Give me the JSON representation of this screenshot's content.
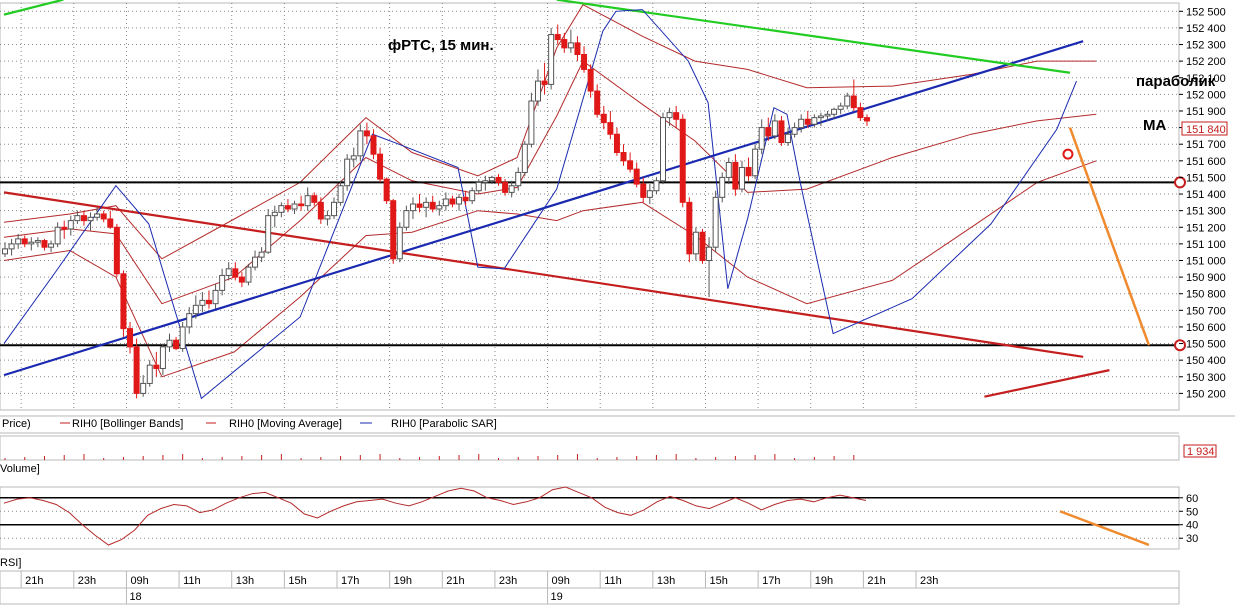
{
  "chart_data": {
    "type": "candlestick",
    "instrument": "RIH0",
    "annotations": {
      "title": "фРТС,  15 мин.",
      "parabolic": "параболик",
      "ma": "MA"
    },
    "price_axis": {
      "ticks": [
        "152 500",
        "152 400",
        "152 300",
        "152 200",
        "152 100",
        "152 000",
        "151 900",
        "151 800",
        "151 700",
        "151 600",
        "151 500",
        "151 400",
        "151 300",
        "151 200",
        "151 100",
        "151 000",
        "150 900",
        "150 800",
        "150 700",
        "150 600",
        "150 500",
        "150 400",
        "150 300",
        "150 200"
      ],
      "ylim": [
        150100,
        152550
      ],
      "current_price": "151 840",
      "grid": true
    },
    "volume_axis": {
      "current_value": "1 934"
    },
    "rsi_axis": {
      "ticks": [
        "60",
        "50",
        "40",
        "30"
      ],
      "ylim": [
        22,
        68
      ],
      "levels": [
        60,
        40
      ]
    },
    "time_axis": {
      "ticks": [
        "21h",
        "23h",
        "09h",
        "11h",
        "13h",
        "15h",
        "17h",
        "19h",
        "21h",
        "23h",
        "09h",
        "11h",
        "13h",
        "15h",
        "17h",
        "19h",
        "21h",
        "23h"
      ],
      "dates": [
        {
          "label": "18",
          "after_index": 2
        },
        {
          "label": "19",
          "after_index": 10
        }
      ]
    },
    "panel_labels": {
      "price": "Price)",
      "volume": "Volume]",
      "rsi": "RSI]"
    },
    "legend": [
      "RIH0 [Bollinger Bands]",
      "RIH0 [Moving Average]",
      "RIH0 [Parabolic SAR]"
    ],
    "horizontal_levels": [
      151470,
      150490
    ],
    "trendlines": {
      "blue_support": {
        "from_bar": 0,
        "from_price": 150310,
        "to_bar": 164,
        "to_price": 152320,
        "color": "#1a2ab0"
      },
      "red_falling": {
        "from_bar": 0,
        "from_price": 151410,
        "to_bar": 164,
        "to_price": 150420,
        "color": "#c41e1e"
      },
      "green_resistance": {
        "from_bar": 84,
        "from_price": 152570,
        "to_bar": 162,
        "to_price": 152130,
        "color": "#22cc22"
      },
      "green_left": {
        "from_bar": 0,
        "from_price": 152480,
        "to_bar": 9,
        "to_price": 152570,
        "color": "#22cc22"
      },
      "red_lower": {
        "from_bar": 149,
        "from_price": 150180,
        "to_bar": 168,
        "to_price": 150340,
        "color": "#c41e1e"
      }
    },
    "forecast": {
      "from_bar": 162,
      "from_price": 151800,
      "to_bar": 174,
      "to_price": 150490,
      "color": "#f08a2e"
    },
    "candles": [
      [
        151040,
        151110,
        151020,
        151070
      ],
      [
        151070,
        151130,
        151030,
        151100
      ],
      [
        151100,
        151160,
        151070,
        151130
      ],
      [
        151130,
        151150,
        151080,
        151100
      ],
      [
        151100,
        151140,
        151060,
        151110
      ],
      [
        151110,
        151140,
        151080,
        151120
      ],
      [
        151120,
        151130,
        151060,
        151080
      ],
      [
        151080,
        151120,
        151050,
        151100
      ],
      [
        151100,
        151230,
        151080,
        151200
      ],
      [
        151200,
        151240,
        151130,
        151190
      ],
      [
        151190,
        151270,
        151150,
        151240
      ],
      [
        151240,
        151300,
        151220,
        151270
      ],
      [
        151270,
        151300,
        151210,
        151240
      ],
      [
        151240,
        151290,
        151180,
        151260
      ],
      [
        151260,
        151320,
        151240,
        151280
      ],
      [
        151280,
        151300,
        151230,
        151250
      ],
      [
        151250,
        151300,
        151190,
        151200
      ],
      [
        151200,
        151220,
        150900,
        150920
      ],
      [
        150920,
        150940,
        150540,
        150590
      ],
      [
        150590,
        150630,
        150440,
        150480
      ],
      [
        150480,
        150530,
        150170,
        150200
      ],
      [
        150200,
        150310,
        150180,
        150260
      ],
      [
        150260,
        150400,
        150240,
        150370
      ],
      [
        150370,
        150450,
        150300,
        150350
      ],
      [
        150350,
        150500,
        150310,
        150480
      ],
      [
        150480,
        150560,
        150450,
        150520
      ],
      [
        150520,
        150540,
        150460,
        150470
      ],
      [
        150470,
        150630,
        150450,
        150600
      ],
      [
        150600,
        150720,
        150560,
        150680
      ],
      [
        150680,
        150790,
        150650,
        150730
      ],
      [
        150730,
        150810,
        150690,
        150760
      ],
      [
        150760,
        150820,
        150710,
        150740
      ],
      [
        150740,
        150860,
        150710,
        150820
      ],
      [
        150820,
        150950,
        150790,
        150910
      ],
      [
        150910,
        150990,
        150880,
        150950
      ],
      [
        150950,
        150990,
        150880,
        150900
      ],
      [
        150900,
        150930,
        150840,
        150870
      ],
      [
        150870,
        150980,
        150850,
        150960
      ],
      [
        150960,
        151060,
        150940,
        151020
      ],
      [
        151020,
        151080,
        150990,
        151050
      ],
      [
        151050,
        151310,
        151040,
        151270
      ],
      [
        151270,
        151330,
        151200,
        151290
      ],
      [
        151290,
        151350,
        151260,
        151330
      ],
      [
        151330,
        151370,
        151290,
        151310
      ],
      [
        151310,
        151360,
        151280,
        151340
      ],
      [
        151340,
        151390,
        151300,
        151330
      ],
      [
        151330,
        151440,
        151300,
        151390
      ],
      [
        151390,
        151410,
        151330,
        151350
      ],
      [
        151350,
        151380,
        151220,
        151250
      ],
      [
        151250,
        151300,
        151210,
        151270
      ],
      [
        151270,
        151380,
        151250,
        151350
      ],
      [
        151350,
        151480,
        151330,
        151450
      ],
      [
        151450,
        151640,
        151420,
        151610
      ],
      [
        151610,
        151680,
        151560,
        151630
      ],
      [
        151630,
        151820,
        151600,
        151780
      ],
      [
        151780,
        151830,
        151700,
        151750
      ],
      [
        151750,
        151790,
        151610,
        151640
      ],
      [
        151640,
        151680,
        151470,
        151490
      ],
      [
        151490,
        151500,
        151340,
        151360
      ],
      [
        151360,
        151370,
        150980,
        151010
      ],
      [
        151010,
        151230,
        150990,
        151200
      ],
      [
        151200,
        151330,
        151180,
        151300
      ],
      [
        151300,
        151380,
        151250,
        151340
      ],
      [
        151340,
        151400,
        151290,
        151320
      ],
      [
        151320,
        151380,
        151260,
        151350
      ],
      [
        151350,
        151390,
        151290,
        151310
      ],
      [
        151310,
        151360,
        151270,
        151330
      ],
      [
        151330,
        151410,
        151300,
        151370
      ],
      [
        151370,
        151390,
        151320,
        151340
      ],
      [
        151340,
        151400,
        151300,
        151380
      ],
      [
        151380,
        151420,
        151330,
        151360
      ],
      [
        151360,
        151440,
        151340,
        151420
      ],
      [
        151420,
        151490,
        151400,
        151470
      ],
      [
        151470,
        151510,
        151420,
        151480
      ],
      [
        151480,
        151510,
        151460,
        151500
      ],
      [
        151500,
        151520,
        151450,
        151470
      ],
      [
        151470,
        151490,
        151390,
        151410
      ],
      [
        151410,
        151480,
        151380,
        151450
      ],
      [
        151450,
        151560,
        151420,
        151530
      ],
      [
        151530,
        151720,
        151510,
        151700
      ],
      [
        151700,
        152010,
        151680,
        151960
      ],
      [
        151960,
        152150,
        151930,
        152080
      ],
      [
        152080,
        152190,
        152000,
        152060
      ],
      [
        152060,
        152400,
        152030,
        152360
      ],
      [
        152360,
        152420,
        152300,
        152330
      ],
      [
        152330,
        152370,
        152250,
        152280
      ],
      [
        152280,
        152390,
        152250,
        152310
      ],
      [
        152310,
        152350,
        152200,
        152240
      ],
      [
        152240,
        152290,
        152130,
        152150
      ],
      [
        152150,
        152180,
        151980,
        152020
      ],
      [
        152020,
        152060,
        151860,
        151880
      ],
      [
        151880,
        151930,
        151790,
        151830
      ],
      [
        151830,
        151900,
        151730,
        151760
      ],
      [
        151760,
        151800,
        151630,
        151650
      ],
      [
        151650,
        151700,
        151570,
        151600
      ],
      [
        151600,
        151650,
        151530,
        151550
      ],
      [
        151550,
        151590,
        151440,
        151460
      ],
      [
        151460,
        151500,
        151350,
        151380
      ],
      [
        151380,
        151460,
        151340,
        151420
      ],
      [
        151420,
        151500,
        151400,
        151480
      ],
      [
        151480,
        151890,
        151460,
        151860
      ],
      [
        151860,
        151920,
        151810,
        151890
      ],
      [
        151890,
        151930,
        151800,
        151850
      ],
      [
        151850,
        151880,
        151320,
        151350
      ],
      [
        151350,
        151380,
        150990,
        151040
      ],
      [
        151040,
        151200,
        151000,
        151170
      ],
      [
        151170,
        151190,
        150980,
        151000
      ],
      [
        151000,
        151140,
        150780,
        151080
      ],
      [
        151080,
        151420,
        151050,
        151380
      ],
      [
        151380,
        151530,
        151350,
        151500
      ],
      [
        151500,
        151620,
        151460,
        151590
      ],
      [
        151590,
        151640,
        151390,
        151430
      ],
      [
        151430,
        151600,
        151410,
        151560
      ],
      [
        151560,
        151620,
        151480,
        151510
      ],
      [
        151510,
        151700,
        151490,
        151670
      ],
      [
        151670,
        151850,
        151640,
        151800
      ],
      [
        151800,
        151860,
        151720,
        151750
      ],
      [
        151750,
        151880,
        151730,
        151840
      ],
      [
        151840,
        151870,
        151690,
        151710
      ],
      [
        151710,
        151800,
        151690,
        151760
      ],
      [
        151760,
        151830,
        151740,
        151800
      ],
      [
        151800,
        151880,
        151770,
        151850
      ],
      [
        151850,
        151900,
        151800,
        151820
      ],
      [
        151820,
        151880,
        151800,
        151860
      ],
      [
        151860,
        151890,
        151810,
        151870
      ],
      [
        151870,
        151900,
        151840,
        151880
      ],
      [
        151880,
        151920,
        151850,
        151910
      ],
      [
        151910,
        151950,
        151880,
        151930
      ],
      [
        151930,
        152010,
        151910,
        151990
      ],
      [
        151990,
        152090,
        151900,
        151920
      ],
      [
        151920,
        151950,
        151840,
        151860
      ],
      [
        151860,
        151880,
        151810,
        151840
      ]
    ],
    "bollinger_bands": {
      "upper": [
        [
          0,
          151230
        ],
        [
          10,
          151280
        ],
        [
          17,
          151330
        ],
        [
          24,
          151010
        ],
        [
          35,
          151250
        ],
        [
          45,
          151470
        ],
        [
          55,
          151860
        ],
        [
          62,
          151650
        ],
        [
          72,
          151510
        ],
        [
          78,
          151620
        ],
        [
          84,
          152280
        ],
        [
          88,
          152540
        ],
        [
          97,
          152350
        ],
        [
          105,
          152200
        ],
        [
          113,
          152150
        ],
        [
          122,
          152040
        ],
        [
          135,
          152050
        ],
        [
          147,
          152120
        ],
        [
          157,
          152200
        ],
        [
          166,
          152200
        ]
      ],
      "middle": [
        [
          0,
          151140
        ],
        [
          10,
          151190
        ],
        [
          17,
          151160
        ],
        [
          24,
          150740
        ],
        [
          35,
          150900
        ],
        [
          45,
          151240
        ],
        [
          55,
          151620
        ],
        [
          62,
          151480
        ],
        [
          72,
          151400
        ],
        [
          78,
          151440
        ],
        [
          84,
          151870
        ],
        [
          88,
          152200
        ],
        [
          97,
          151940
        ],
        [
          105,
          151720
        ],
        [
          113,
          151410
        ],
        [
          122,
          151430
        ],
        [
          135,
          151620
        ],
        [
          147,
          151760
        ],
        [
          157,
          151840
        ],
        [
          166,
          151880
        ]
      ],
      "lower": [
        [
          0,
          151000
        ],
        [
          10,
          151060
        ],
        [
          17,
          150900
        ],
        [
          24,
          150300
        ],
        [
          35,
          150450
        ],
        [
          45,
          150780
        ],
        [
          55,
          151150
        ],
        [
          62,
          151170
        ],
        [
          72,
          151300
        ],
        [
          78,
          151280
        ],
        [
          84,
          151240
        ],
        [
          88,
          151300
        ],
        [
          97,
          151350
        ],
        [
          105,
          151150
        ],
        [
          113,
          150900
        ],
        [
          122,
          150740
        ],
        [
          135,
          150880
        ],
        [
          147,
          151200
        ],
        [
          157,
          151470
        ],
        [
          166,
          151600
        ]
      ]
    },
    "parabolic_sar": [
      [
        0,
        150500
      ],
      [
        8,
        150940
      ],
      [
        17,
        151450
      ],
      [
        22,
        151220
      ],
      [
        30,
        150170
      ],
      [
        45,
        150660
      ],
      [
        56,
        151760
      ],
      [
        60,
        151700
      ],
      [
        69,
        151560
      ],
      [
        72,
        150960
      ],
      [
        76,
        150950
      ],
      [
        84,
        151430
      ],
      [
        91,
        152380
      ],
      [
        93,
        152500
      ],
      [
        97,
        152510
      ],
      [
        104,
        152200
      ],
      [
        107,
        151950
      ],
      [
        110,
        150830
      ],
      [
        113,
        151250
      ],
      [
        117,
        151920
      ],
      [
        119,
        151880
      ],
      [
        121,
        151470
      ],
      [
        126,
        150560
      ],
      [
        138,
        150770
      ],
      [
        150,
        151220
      ],
      [
        160,
        151790
      ],
      [
        163,
        152080
      ]
    ],
    "rsi": [
      56,
      59,
      60,
      58,
      55,
      49,
      40,
      32,
      25,
      29,
      36,
      47,
      52,
      55,
      54,
      49,
      51,
      56,
      60,
      63,
      64,
      60,
      56,
      48,
      45,
      50,
      54,
      57,
      58,
      59,
      56,
      54,
      57,
      61,
      65,
      67,
      65,
      60,
      58,
      55,
      57,
      60,
      66,
      68,
      64,
      60,
      53,
      49,
      47,
      51,
      57,
      61,
      58,
      54,
      52,
      56,
      60,
      56,
      51,
      55,
      58,
      59,
      57,
      60,
      62,
      60,
      58
    ]
  }
}
